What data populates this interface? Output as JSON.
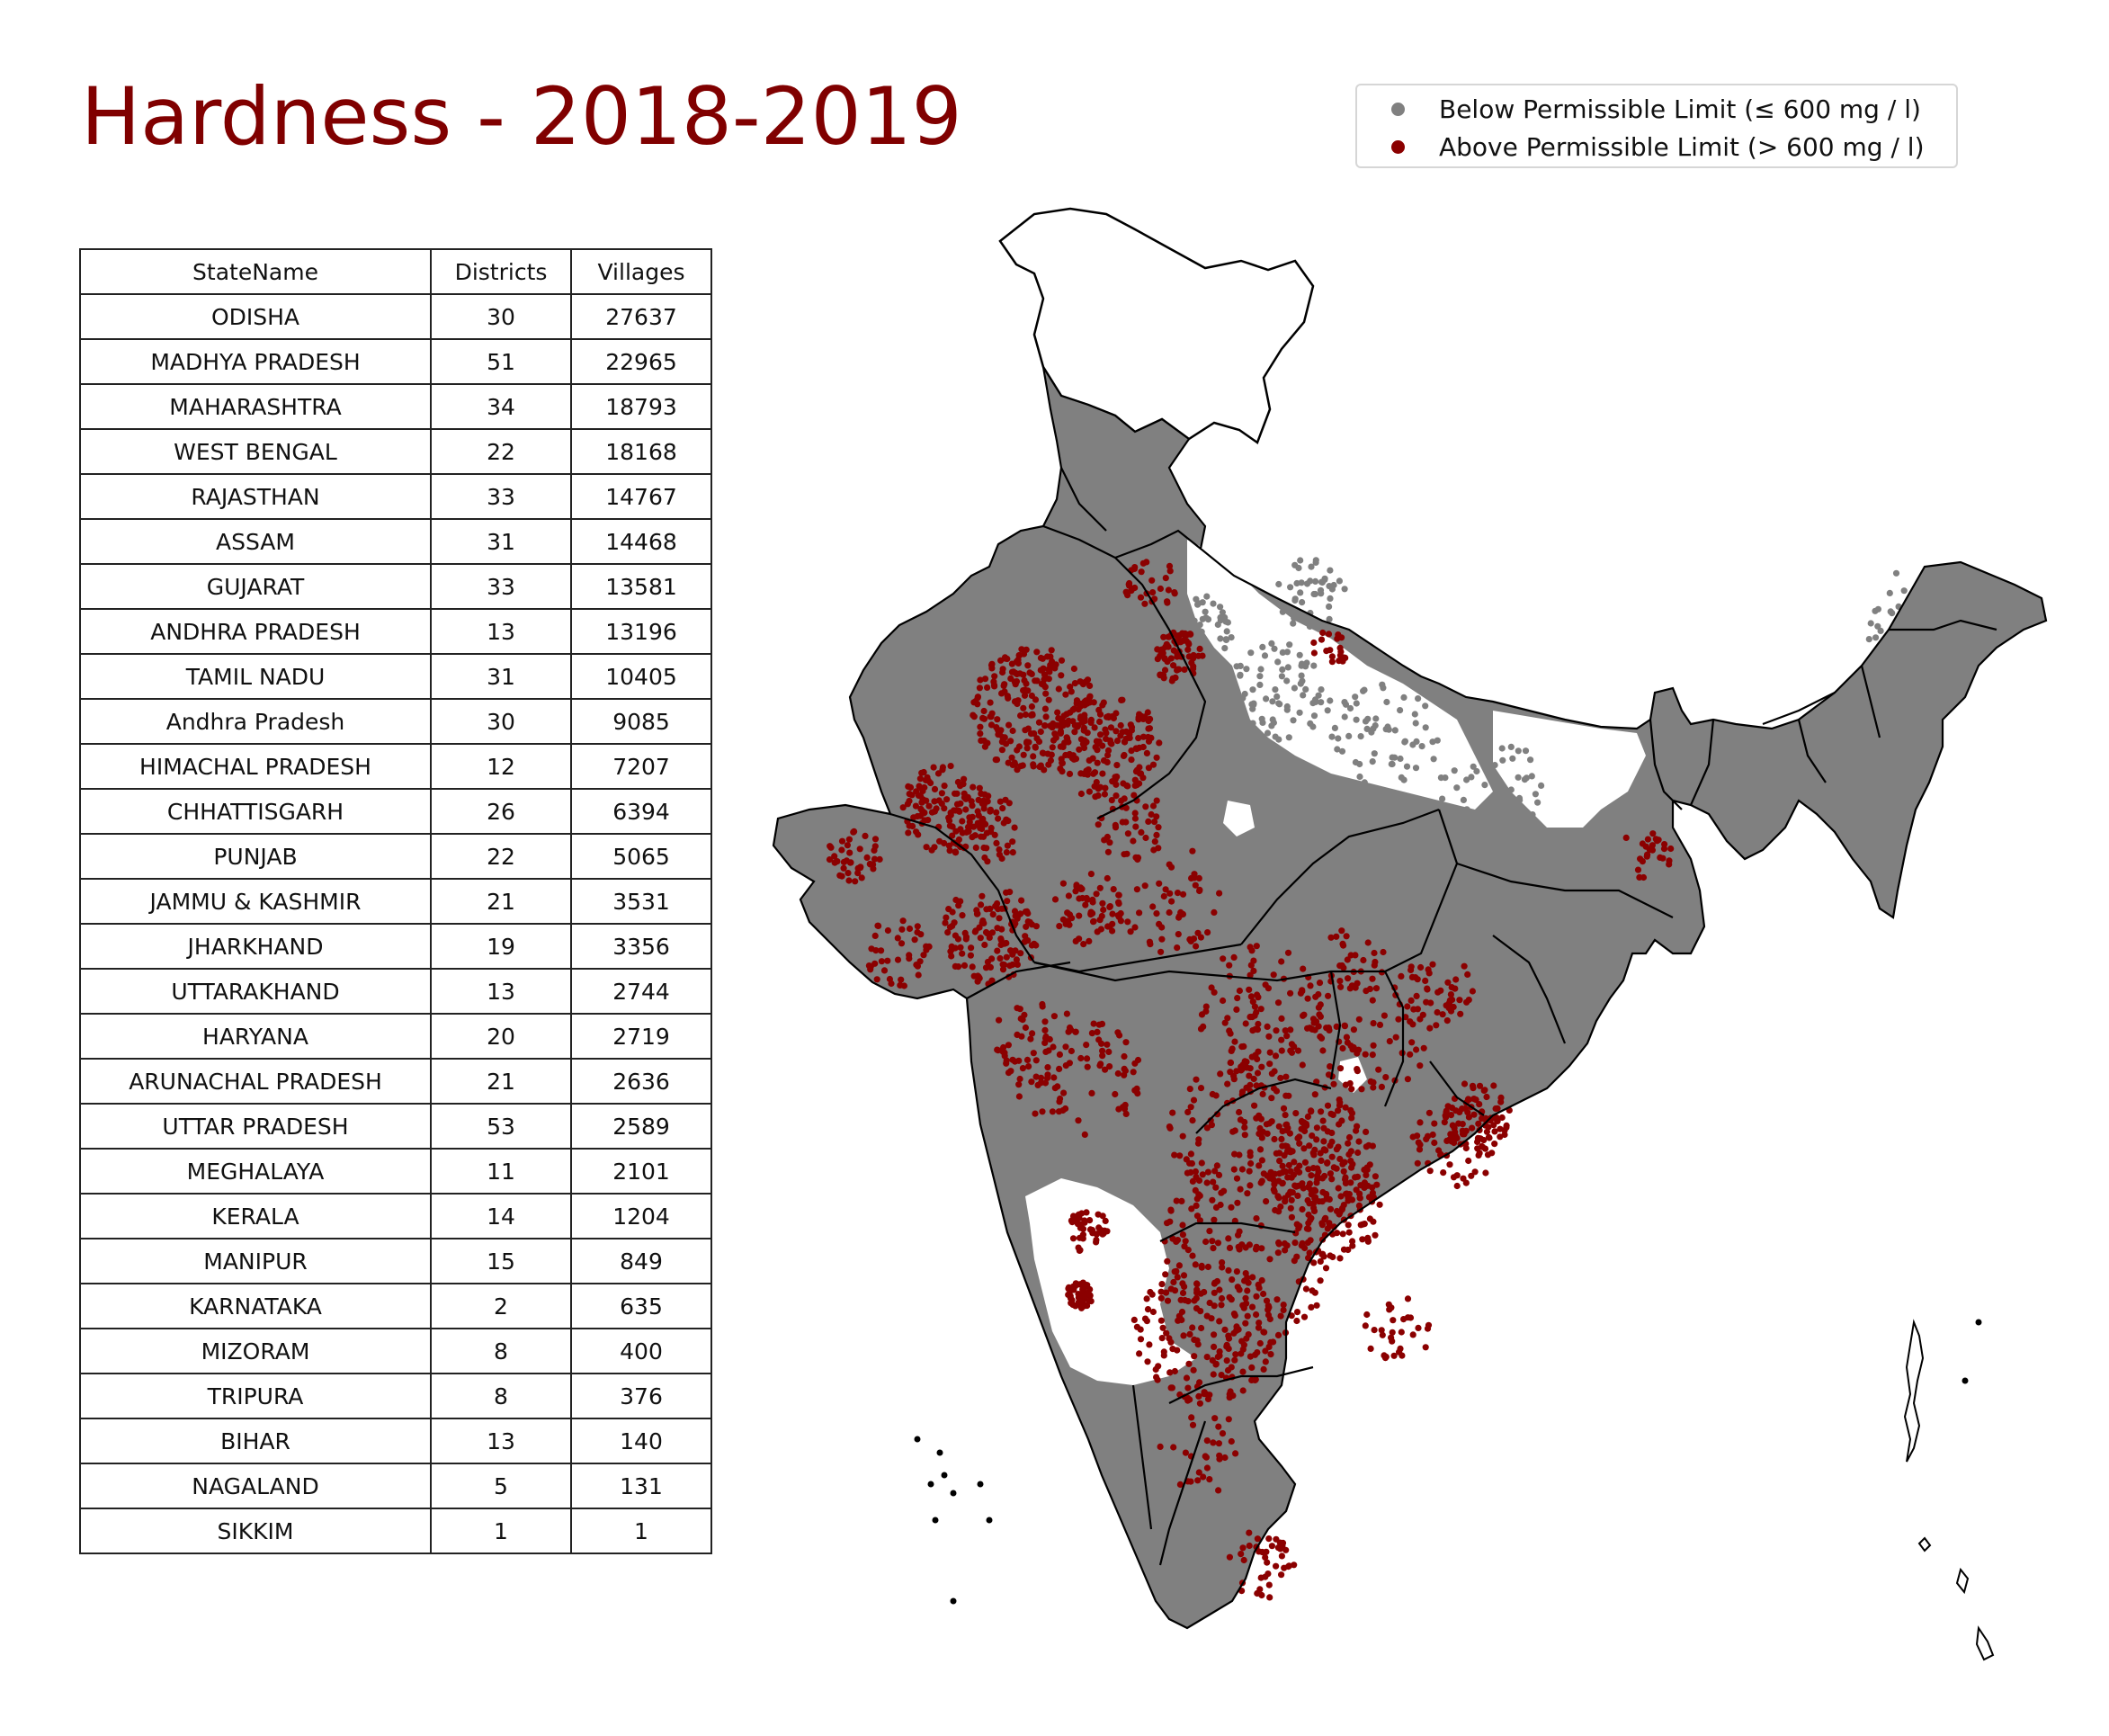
{
  "title": "Hardness - 2018-2019",
  "legend": {
    "items": [
      {
        "label": "Below Permissible Limit (≤ 600 mg / l)",
        "color": "#808080"
      },
      {
        "label": "Above Permissible Limit (> 600 mg / l)",
        "color": "#8b0000"
      }
    ]
  },
  "table": {
    "headers": [
      "StateName",
      "Districts",
      "Villages"
    ],
    "rows": [
      [
        "ODISHA",
        "30",
        "27637"
      ],
      [
        "MADHYA PRADESH",
        "51",
        "22965"
      ],
      [
        "MAHARASHTRA",
        "34",
        "18793"
      ],
      [
        "WEST BENGAL",
        "22",
        "18168"
      ],
      [
        "RAJASTHAN",
        "33",
        "14767"
      ],
      [
        "ASSAM",
        "31",
        "14468"
      ],
      [
        "GUJARAT",
        "33",
        "13581"
      ],
      [
        "ANDHRA PRADESH",
        "13",
        "13196"
      ],
      [
        "TAMIL NADU",
        "31",
        "10405"
      ],
      [
        "Andhra Pradesh",
        "30",
        "9085"
      ],
      [
        "HIMACHAL PRADESH",
        "12",
        "7207"
      ],
      [
        "CHHATTISGARH",
        "26",
        "6394"
      ],
      [
        "PUNJAB",
        "22",
        "5065"
      ],
      [
        "JAMMU & KASHMIR",
        "21",
        "3531"
      ],
      [
        "JHARKHAND",
        "19",
        "3356"
      ],
      [
        "UTTARAKHAND",
        "13",
        "2744"
      ],
      [
        "HARYANA",
        "20",
        "2719"
      ],
      [
        "ARUNACHAL PRADESH",
        "21",
        "2636"
      ],
      [
        "UTTAR PRADESH",
        "53",
        "2589"
      ],
      [
        "MEGHALAYA",
        "11",
        "2101"
      ],
      [
        "KERALA",
        "14",
        "1204"
      ],
      [
        "MANIPUR",
        "15",
        "849"
      ],
      [
        "KARNATAKA",
        "2",
        "635"
      ],
      [
        "MIZORAM",
        "8",
        "400"
      ],
      [
        "TRIPURA",
        "8",
        "376"
      ],
      [
        "BIHAR",
        "13",
        "140"
      ],
      [
        "NAGALAND",
        "5",
        "131"
      ],
      [
        "SIKKIM",
        "1",
        "1"
      ]
    ]
  },
  "map": {
    "fill_colors": {
      "below": "#808080",
      "above": "#8b0000",
      "border": "#000000",
      "background": "#ffffff"
    }
  }
}
